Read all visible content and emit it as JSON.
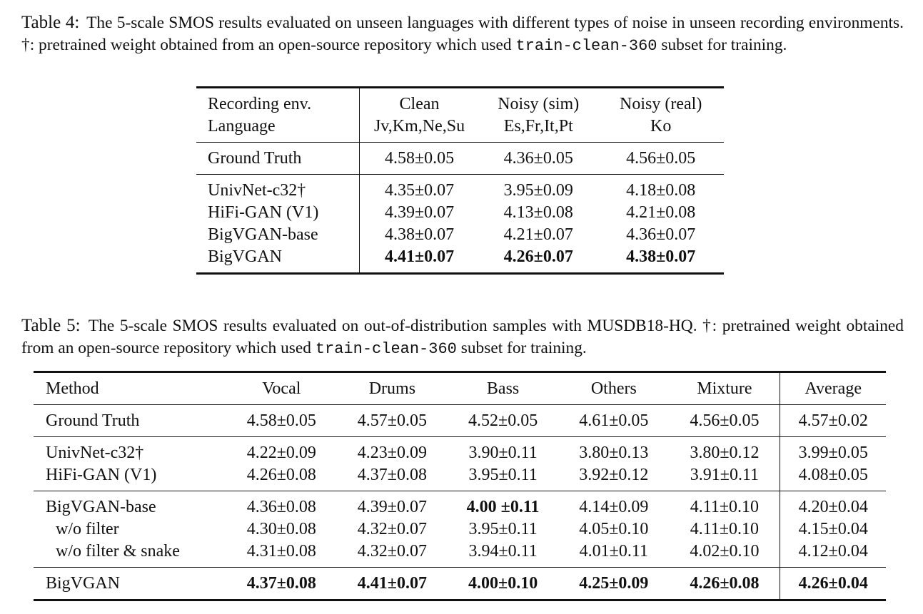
{
  "table4": {
    "label": "Table 4:",
    "caption_pre": "The 5-scale SMOS results evaluated on unseen languages with different types of noise in unseen recording environments. †: pretrained weight obtained from an open-source repository which used",
    "caption_code": "train-clean-360",
    "caption_post": "subset for training.",
    "header_row1": [
      "Recording env.",
      "Clean",
      "Noisy (sim)",
      "Noisy (real)"
    ],
    "header_row2": [
      "Language",
      "Jv,Km,Ne,Su",
      "Es,Fr,It,Pt",
      "Ko"
    ],
    "ground_truth": [
      "Ground Truth",
      "4.58±0.05",
      "4.36±0.05",
      "4.56±0.05"
    ],
    "rows": [
      [
        "UnivNet-c32†",
        "4.35±0.07",
        "3.95±0.09",
        "4.18±0.08"
      ],
      [
        "HiFi-GAN (V1)",
        "4.39±0.07",
        "4.13±0.08",
        "4.21±0.08"
      ],
      [
        "BigVGAN-base",
        "4.38±0.07",
        "4.21±0.07",
        "4.36±0.07"
      ],
      [
        "BigVGAN",
        "4.41±0.07",
        "4.26±0.07",
        "4.38±0.07"
      ]
    ]
  },
  "table5": {
    "label": "Table 5:",
    "caption_pre": "The 5-scale SMOS results evaluated on out-of-distribution samples with MUSDB18-HQ. †: pretrained weight obtained from an open-source repository which used",
    "caption_code": "train-clean-360",
    "caption_post": "subset for training.",
    "header": [
      "Method",
      "Vocal",
      "Drums",
      "Bass",
      "Others",
      "Mixture",
      "Average"
    ],
    "ground_truth": [
      "Ground Truth",
      "4.58±0.05",
      "4.57±0.05",
      "4.52±0.05",
      "4.61±0.05",
      "4.56±0.05",
      "4.57±0.02"
    ],
    "group1": [
      [
        "UnivNet-c32†",
        "4.22±0.09",
        "4.23±0.09",
        "3.90±0.11",
        "3.80±0.13",
        "3.80±0.12",
        "3.99±0.05"
      ],
      [
        "HiFi-GAN (V1)",
        "4.26±0.08",
        "4.37±0.08",
        "3.95±0.11",
        "3.92±0.12",
        "3.91±0.11",
        "4.08±0.05"
      ]
    ],
    "group2": [
      [
        "BigVGAN-base",
        "4.36±0.08",
        "4.39±0.07",
        "4.00 ±0.11",
        "4.14±0.09",
        "4.11±0.10",
        "4.20±0.04"
      ],
      [
        "w/o filter",
        "4.30±0.08",
        "4.32±0.07",
        "3.95±0.11",
        "4.05±0.10",
        "4.11±0.10",
        "4.15±0.04"
      ],
      [
        "w/o filter & snake",
        "4.31±0.08",
        "4.32±0.07",
        "3.94±0.11",
        "4.01±0.11",
        "4.02±0.10",
        "4.12±0.04"
      ]
    ],
    "final": [
      "BigVGAN",
      "4.37±0.08",
      "4.41±0.07",
      "4.00±0.10",
      "4.25±0.09",
      "4.26±0.08",
      "4.26±0.04"
    ]
  }
}
